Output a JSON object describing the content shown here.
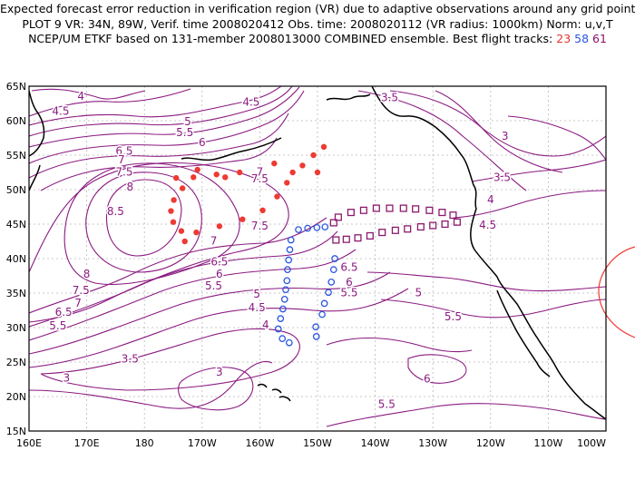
{
  "header": {
    "line1": "Expected forecast error reduction in verification region (VR) due to adaptive observations around any grid point.",
    "line2": "PLOT 9 VR: 34N, 89W, Verif. time 2008020412 Obs. time: 2008020112 (VR radius: 1000km) Norm: u,v,T",
    "line3_prefix": "NCEP/UM ETKF based on 131-member 2008013000 COMBINED ensemble.  Best flight tracks:",
    "track_red": "23",
    "track_blue": "58",
    "track_purple": "61"
  },
  "map": {
    "lat_labels": [
      "65N",
      "60N",
      "55N",
      "50N",
      "45N",
      "40N",
      "35N",
      "30N",
      "25N",
      "20N",
      "15N"
    ],
    "lon_labels": [
      "160E",
      "170E",
      "180",
      "170W",
      "160W",
      "150W",
      "140W",
      "130W",
      "120W",
      "110W",
      "100W"
    ],
    "contour_color": "#8b1a80",
    "contour_labels": [
      {
        "text": "4",
        "lon": 169,
        "lat": 63.5
      },
      {
        "text": "4.5",
        "lon": 165.5,
        "lat": 61.3
      },
      {
        "text": "5",
        "lon": 187.5,
        "lat": 59.8
      },
      {
        "text": "5.5",
        "lon": 187,
        "lat": 58.2
      },
      {
        "text": "6",
        "lon": 190,
        "lat": 56.8
      },
      {
        "text": "4.5",
        "lon": 198.5,
        "lat": 62.6
      },
      {
        "text": "3.5",
        "lon": 222.5,
        "lat": 63.3
      },
      {
        "text": "3",
        "lon": 242.5,
        "lat": 57.7
      },
      {
        "text": "3.5",
        "lon": 242,
        "lat": 51.7
      },
      {
        "text": "4",
        "lon": 240,
        "lat": 48.5
      },
      {
        "text": "4.5",
        "lon": 239.5,
        "lat": 44.8
      },
      {
        "text": "6.5",
        "lon": 176.5,
        "lat": 55.5
      },
      {
        "text": "7",
        "lon": 176,
        "lat": 54.3
      },
      {
        "text": "7.5",
        "lon": 176.5,
        "lat": 52.5
      },
      {
        "text": "8",
        "lon": 177.5,
        "lat": 50.3
      },
      {
        "text": "8.5",
        "lon": 175,
        "lat": 46.8
      },
      {
        "text": "7",
        "lon": 200,
        "lat": 52.5
      },
      {
        "text": "7.5",
        "lon": 200,
        "lat": 51.5
      },
      {
        "text": "7.5",
        "lon": 200,
        "lat": 44.7
      },
      {
        "text": "7",
        "lon": 192,
        "lat": 42.5
      },
      {
        "text": "6.5",
        "lon": 193,
        "lat": 39.5
      },
      {
        "text": "6",
        "lon": 193,
        "lat": 37.7
      },
      {
        "text": "5.5",
        "lon": 192,
        "lat": 36.0
      },
      {
        "text": "5",
        "lon": 199.5,
        "lat": 34.8
      },
      {
        "text": "4.5",
        "lon": 199.5,
        "lat": 32.8
      },
      {
        "text": "4",
        "lon": 201,
        "lat": 30.3
      },
      {
        "text": "6.5",
        "lon": 215.5,
        "lat": 38.7
      },
      {
        "text": "6",
        "lon": 215.5,
        "lat": 36.5
      },
      {
        "text": "5.5",
        "lon": 215.5,
        "lat": 35.0
      },
      {
        "text": "5",
        "lon": 227.5,
        "lat": 35.0
      },
      {
        "text": "5.5",
        "lon": 233.5,
        "lat": 31.5
      },
      {
        "text": "6",
        "lon": 229,
        "lat": 22.5
      },
      {
        "text": "5.5",
        "lon": 222,
        "lat": 18.8
      },
      {
        "text": "8",
        "lon": 170,
        "lat": 37.7
      },
      {
        "text": "7.5",
        "lon": 169,
        "lat": 35.3
      },
      {
        "text": "7",
        "lon": 168.5,
        "lat": 33.5
      },
      {
        "text": "6.5",
        "lon": 166,
        "lat": 32.2
      },
      {
        "text": "5.5",
        "lon": 165,
        "lat": 30.2
      },
      {
        "text": "3.5",
        "lon": 177.5,
        "lat": 25.4
      },
      {
        "text": "3",
        "lon": 166.5,
        "lat": 22.6
      },
      {
        "text": "3",
        "lon": 193,
        "lat": 23.5
      }
    ],
    "tracks": {
      "red": {
        "name": "23",
        "color": "#ee3a32",
        "points": [
          [
            211.1,
            56.2
          ],
          [
            209.3,
            55.0
          ],
          [
            207.4,
            53.5
          ],
          [
            205.7,
            52.5
          ],
          [
            210.0,
            52.5
          ],
          [
            196.5,
            52.5
          ],
          [
            192.5,
            52.2
          ],
          [
            188.5,
            51.8
          ],
          [
            185.5,
            51.7
          ],
          [
            194.0,
            51.8
          ],
          [
            202.5,
            53.8
          ],
          [
            186.6,
            50.2
          ],
          [
            189.2,
            52.9
          ],
          [
            185.1,
            48.5
          ],
          [
            184.6,
            46.9
          ],
          [
            185.0,
            45.3
          ],
          [
            186.4,
            44.0
          ],
          [
            187.0,
            42.5
          ],
          [
            189.0,
            43.8
          ],
          [
            193.0,
            44.7
          ],
          [
            197.0,
            45.7
          ],
          [
            200.5,
            47.0
          ],
          [
            203.0,
            49.0
          ],
          [
            204.7,
            51.0
          ]
        ]
      },
      "blue": {
        "name": "58",
        "color": "#2a55e0",
        "points": [
          [
            211.3,
            44.6
          ],
          [
            209.9,
            44.5
          ],
          [
            208.3,
            44.4
          ],
          [
            206.7,
            44.2
          ],
          [
            205.4,
            42.7
          ],
          [
            205.2,
            41.3
          ],
          [
            205.0,
            39.8
          ],
          [
            204.8,
            38.4
          ],
          [
            204.7,
            36.8
          ],
          [
            204.5,
            35.5
          ],
          [
            204.3,
            34.1
          ],
          [
            204.0,
            32.7
          ],
          [
            203.6,
            31.3
          ],
          [
            203.2,
            29.8
          ],
          [
            203.9,
            28.4
          ],
          [
            205.1,
            27.8
          ],
          [
            209.8,
            28.7
          ],
          [
            209.7,
            30.1
          ],
          [
            210.8,
            31.9
          ],
          [
            211.2,
            33.5
          ],
          [
            211.9,
            35.1
          ],
          [
            212.4,
            36.6
          ],
          [
            212.8,
            38.4
          ],
          [
            213.0,
            40.0
          ]
        ]
      },
      "purple": {
        "name": "61",
        "color": "#8b1a6e",
        "points": [
          [
            212.8,
            45.2
          ],
          [
            213.6,
            46.0
          ],
          [
            215.8,
            46.7
          ],
          [
            218.0,
            47.0
          ],
          [
            220.2,
            47.3
          ],
          [
            222.5,
            47.3
          ],
          [
            224.9,
            47.3
          ],
          [
            227.0,
            47.2
          ],
          [
            229.4,
            47.0
          ],
          [
            231.6,
            46.7
          ],
          [
            233.5,
            46.3
          ],
          [
            234.2,
            45.3
          ],
          [
            232.1,
            45.0
          ],
          [
            230.0,
            44.8
          ],
          [
            227.9,
            44.6
          ],
          [
            225.6,
            44.3
          ],
          [
            223.5,
            44.1
          ],
          [
            221.2,
            43.8
          ],
          [
            219.1,
            43.3
          ],
          [
            217.0,
            43.0
          ],
          [
            215.0,
            42.8
          ],
          [
            213.2,
            42.7
          ]
        ]
      }
    }
  }
}
